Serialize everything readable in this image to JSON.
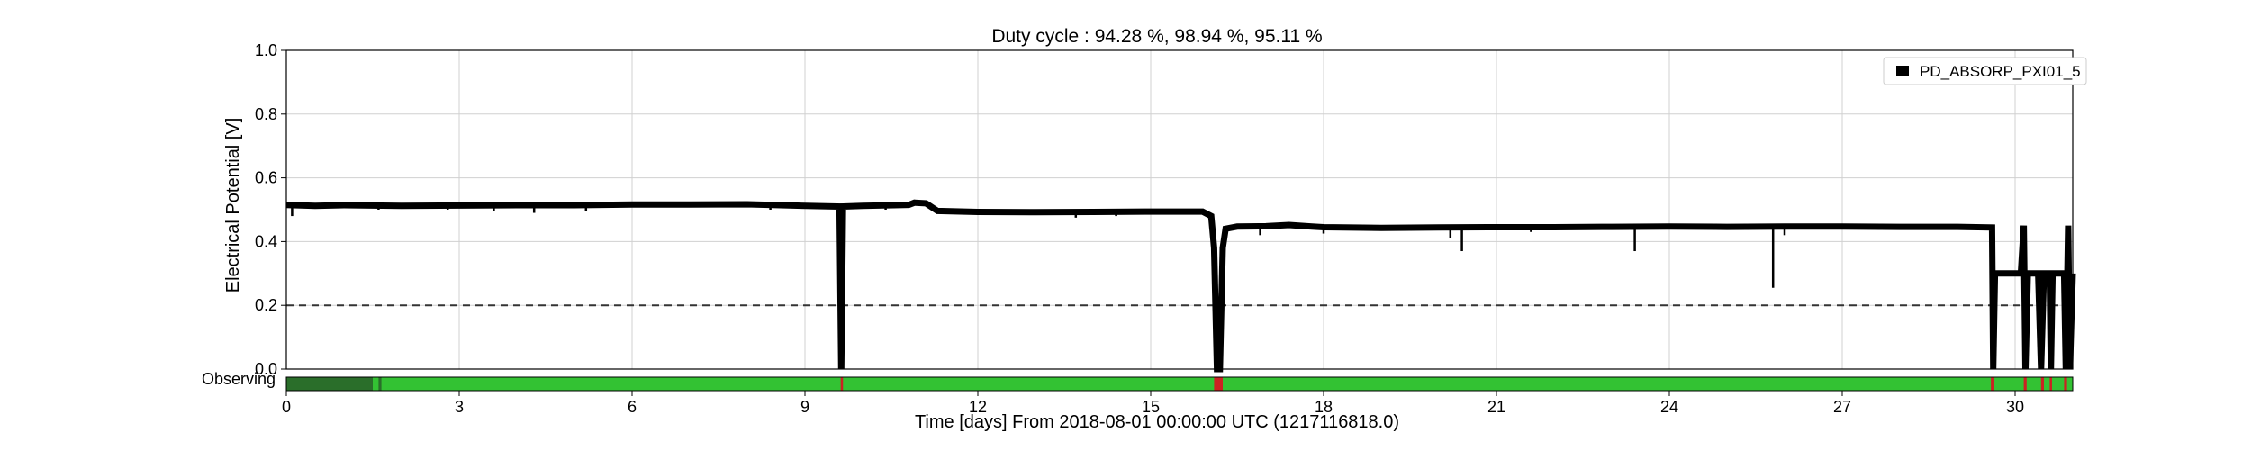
{
  "chart_data": {
    "type": "line",
    "title": "Duty cycle : 94.28 %, 98.94 %, 95.11 %",
    "xlabel": "Time [days] From 2018-08-01 00:00:00 UTC (1217116818.0)",
    "ylabel": "Electrical Potential [V]",
    "xlim": [
      0,
      31
    ],
    "ylim": [
      0,
      1.0
    ],
    "xticks": [
      0,
      3,
      6,
      9,
      12,
      15,
      18,
      21,
      24,
      27,
      30
    ],
    "yticks": [
      "0.0",
      "0.2",
      "0.4",
      "0.6",
      "0.8",
      "1.0"
    ],
    "grid": true,
    "legend_position": "top-right",
    "threshold": 0.2,
    "series": [
      {
        "name": "PD_ABSORP_PXI01_5",
        "color": "#000000",
        "points": [
          [
            0,
            0.515
          ],
          [
            0.5,
            0.512
          ],
          [
            1,
            0.514
          ],
          [
            2,
            0.512
          ],
          [
            3,
            0.513
          ],
          [
            4,
            0.514
          ],
          [
            5,
            0.514
          ],
          [
            6,
            0.516
          ],
          [
            7,
            0.516
          ],
          [
            8,
            0.517
          ],
          [
            8.8,
            0.513
          ],
          [
            9.6,
            0.51
          ],
          [
            9.63,
            0.0
          ],
          [
            9.66,
            0.51
          ],
          [
            10,
            0.512
          ],
          [
            10.8,
            0.515
          ],
          [
            10.9,
            0.522
          ],
          [
            11.1,
            0.52
          ],
          [
            11.3,
            0.496
          ],
          [
            12,
            0.493
          ],
          [
            13,
            0.492
          ],
          [
            14,
            0.493
          ],
          [
            15,
            0.494
          ],
          [
            15.9,
            0.494
          ],
          [
            16.05,
            0.48
          ],
          [
            16.1,
            0.38
          ],
          [
            16.15,
            0.0
          ],
          [
            16.2,
            0.0
          ],
          [
            16.25,
            0.38
          ],
          [
            16.3,
            0.44
          ],
          [
            16.5,
            0.447
          ],
          [
            17,
            0.448
          ],
          [
            17.4,
            0.452
          ],
          [
            17.8,
            0.447
          ],
          [
            18,
            0.445
          ],
          [
            19,
            0.443
          ],
          [
            20,
            0.444
          ],
          [
            21,
            0.445
          ],
          [
            22,
            0.445
          ],
          [
            23,
            0.446
          ],
          [
            24,
            0.447
          ],
          [
            25,
            0.446
          ],
          [
            26,
            0.447
          ],
          [
            27,
            0.447
          ],
          [
            28,
            0.446
          ],
          [
            29,
            0.446
          ],
          [
            29.6,
            0.444
          ],
          [
            29.62,
            0.0
          ],
          [
            29.65,
            0.3
          ],
          [
            30.1,
            0.3
          ],
          [
            30.15,
            0.45
          ],
          [
            30.18,
            0.0
          ],
          [
            30.22,
            0.3
          ],
          [
            30.4,
            0.3
          ],
          [
            30.45,
            0.0
          ],
          [
            30.5,
            0.3
          ],
          [
            30.6,
            0.3
          ],
          [
            30.62,
            0.0
          ],
          [
            30.65,
            0.3
          ],
          [
            30.85,
            0.3
          ],
          [
            30.88,
            0.0
          ],
          [
            30.92,
            0.45
          ],
          [
            30.95,
            0.0
          ],
          [
            31,
            0.3
          ]
        ],
        "glitches": [
          [
            0.1,
            0.48
          ],
          [
            1.6,
            0.5
          ],
          [
            2.8,
            0.5
          ],
          [
            3.6,
            0.495
          ],
          [
            4.3,
            0.49
          ],
          [
            5.2,
            0.495
          ],
          [
            8.4,
            0.5
          ],
          [
            10.4,
            0.5
          ],
          [
            13.7,
            0.475
          ],
          [
            14.4,
            0.48
          ],
          [
            16.9,
            0.42
          ],
          [
            18.0,
            0.425
          ],
          [
            20.2,
            0.41
          ],
          [
            20.4,
            0.37
          ],
          [
            21.6,
            0.43
          ],
          [
            23.4,
            0.37
          ],
          [
            25.8,
            0.255
          ],
          [
            26.0,
            0.42
          ]
        ]
      }
    ]
  },
  "observing_bar": {
    "label": "Observing",
    "on_color": "#33c233",
    "segment_color": "#2a6e2a",
    "gap_color": "#cc2222",
    "segments": [
      [
        0,
        1.5
      ],
      [
        1.6,
        1.65
      ]
    ],
    "gaps": [
      [
        9.62,
        9.66
      ],
      [
        16.1,
        16.25
      ],
      [
        29.58,
        29.64
      ],
      [
        30.15,
        30.2
      ],
      [
        30.45,
        30.5
      ],
      [
        30.6,
        30.64
      ],
      [
        30.85,
        30.9
      ]
    ]
  }
}
